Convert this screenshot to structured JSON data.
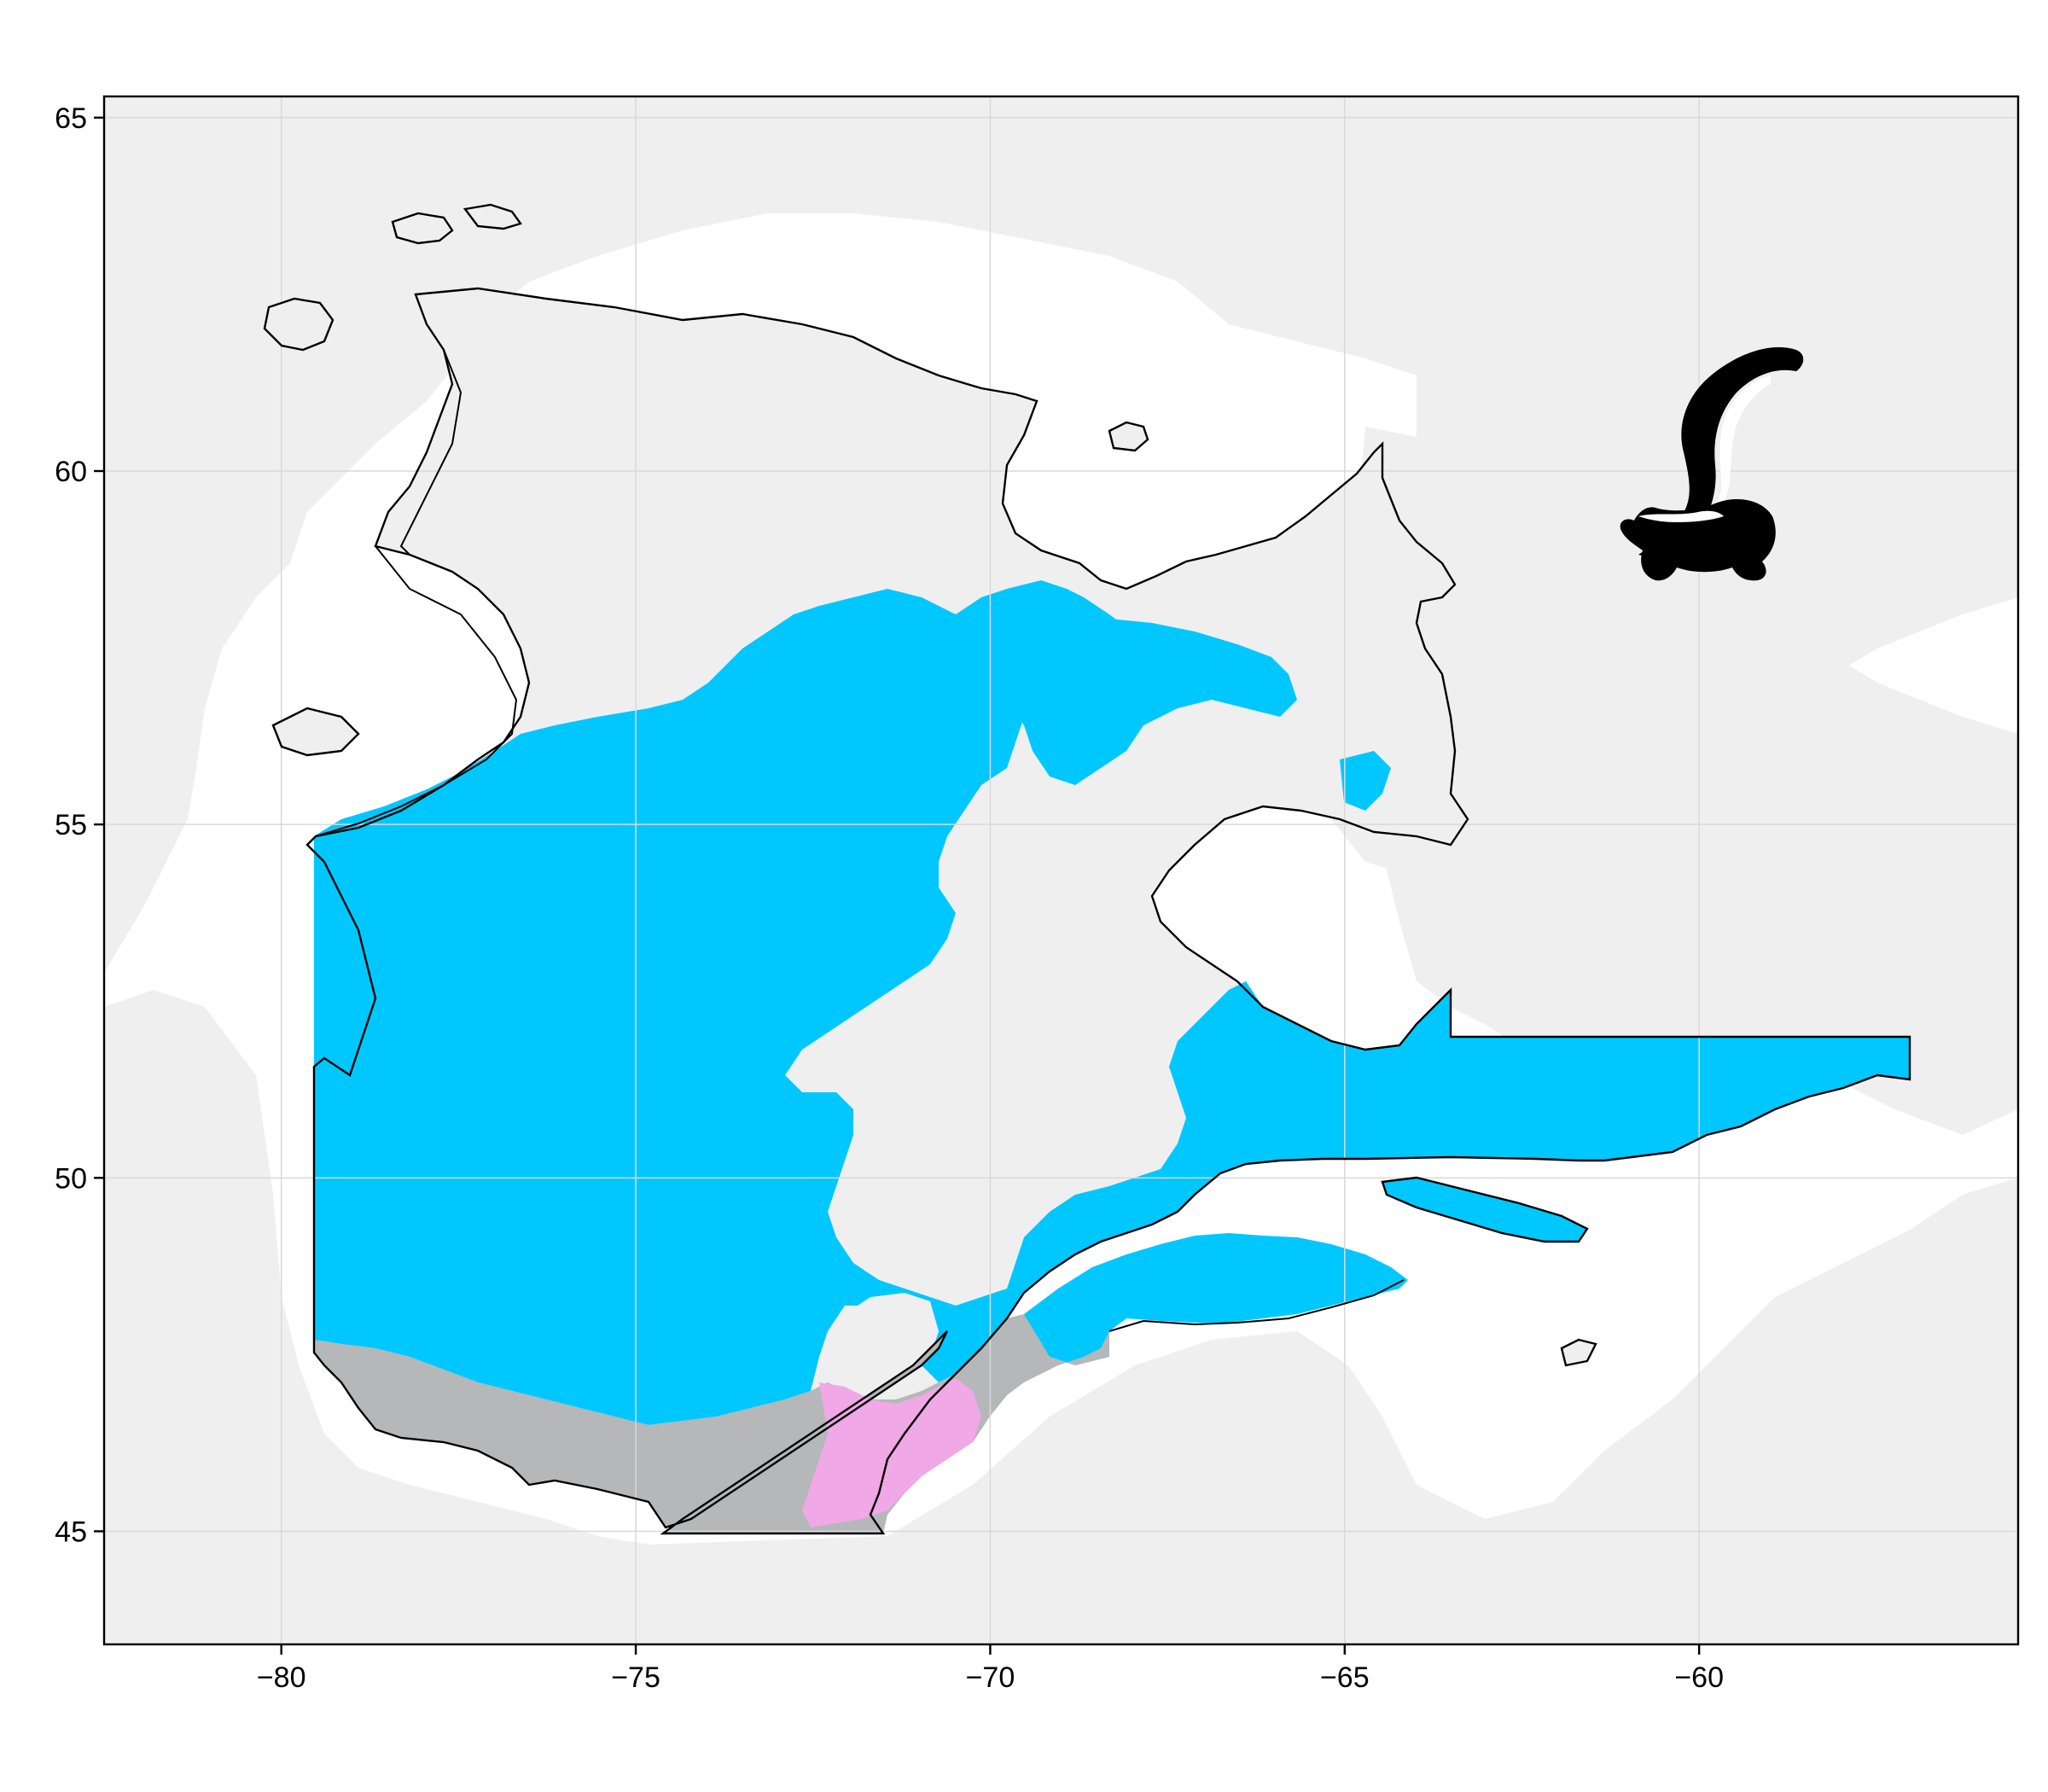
{
  "chart_data": {
    "type": "map",
    "title": "",
    "xlabel": "",
    "ylabel": "",
    "xlim": [
      -82.5,
      -55.5
    ],
    "ylim": [
      43.4,
      65.3
    ],
    "x_ticks": [
      -80,
      -75,
      -70,
      -65,
      -60
    ],
    "y_ticks": [
      45,
      50,
      55,
      60,
      65
    ],
    "x_tick_labels": [
      "−80",
      "−75",
      "−70",
      "−65",
      "−60"
    ],
    "y_tick_labels": [
      "45",
      "50",
      "55",
      "60",
      "65"
    ],
    "grid": true,
    "region_outline": "Québec",
    "layers": [
      {
        "name": "background-land",
        "color": "#efefef"
      },
      {
        "name": "range-cyan",
        "color": "#00c8ff"
      },
      {
        "name": "range-gray",
        "color": "#b6b7b9"
      },
      {
        "name": "range-pink",
        "color": "#f0a8e6"
      }
    ],
    "icon": "skunk-silhouette-icon"
  },
  "colors": {
    "background_land": "#efefef",
    "cyan": "#00c8ff",
    "gray": "#b6b7b9",
    "pink": "#f0a8e6",
    "outline": "#000000",
    "gridline": "#d9d9d9"
  }
}
